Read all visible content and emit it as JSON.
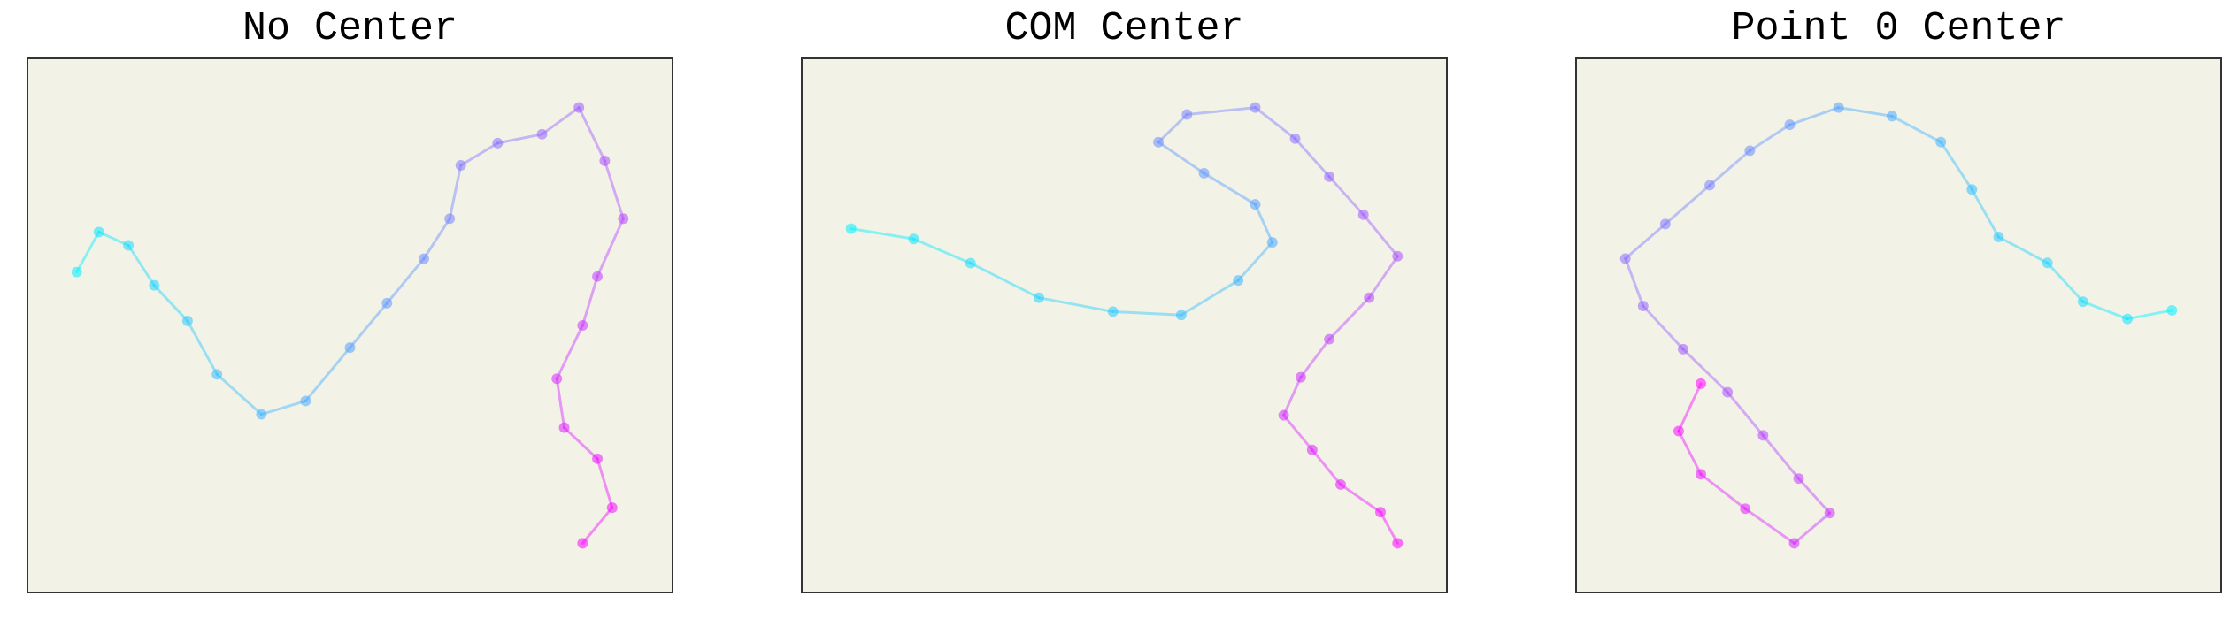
{
  "chart_data": [
    {
      "type": "line",
      "title": "No Center",
      "xlabel": "",
      "ylabel": "",
      "grid": false,
      "series": [
        {
          "color_start": "#00f0ff",
          "color_end": "#ff00ff",
          "points": [
            [
              -8.2,
              0.5
            ],
            [
              -7.6,
              1.4
            ],
            [
              -6.8,
              1.1
            ],
            [
              -6.1,
              0.2
            ],
            [
              -5.2,
              -0.6
            ],
            [
              -4.4,
              -1.8
            ],
            [
              -3.2,
              -2.7
            ],
            [
              -2.0,
              -2.4
            ],
            [
              -0.8,
              -1.2
            ],
            [
              0.2,
              -0.2
            ],
            [
              1.2,
              0.8
            ],
            [
              1.9,
              1.7
            ],
            [
              2.2,
              2.9
            ],
            [
              3.2,
              3.4
            ],
            [
              4.4,
              3.6
            ],
            [
              5.4,
              4.2
            ],
            [
              6.1,
              3.0
            ],
            [
              6.6,
              1.7
            ],
            [
              5.9,
              0.4
            ],
            [
              5.5,
              -0.7
            ],
            [
              4.8,
              -1.9
            ],
            [
              5.0,
              -3.0
            ],
            [
              5.9,
              -3.7
            ],
            [
              6.3,
              -4.8
            ],
            [
              5.5,
              -5.6
            ]
          ]
        }
      ]
    },
    {
      "type": "line",
      "title": "COM Center",
      "xlabel": "",
      "ylabel": "",
      "grid": false,
      "series": [
        {
          "color_start": "#00f0ff",
          "color_end": "#ff00ff",
          "points": [
            [
              -6.0,
              2.8
            ],
            [
              -4.9,
              2.5
            ],
            [
              -3.9,
              1.8
            ],
            [
              -2.7,
              0.8
            ],
            [
              -1.4,
              0.4
            ],
            [
              -0.2,
              0.3
            ],
            [
              0.8,
              1.3
            ],
            [
              1.4,
              2.4
            ],
            [
              1.1,
              3.5
            ],
            [
              0.2,
              4.4
            ],
            [
              -0.6,
              5.3
            ],
            [
              -0.1,
              6.1
            ],
            [
              1.1,
              6.3
            ],
            [
              1.8,
              5.4
            ],
            [
              2.4,
              4.3
            ],
            [
              3.0,
              3.2
            ],
            [
              3.6,
              2.0
            ],
            [
              3.1,
              0.8
            ],
            [
              2.4,
              -0.4
            ],
            [
              1.9,
              -1.5
            ],
            [
              1.6,
              -2.6
            ],
            [
              2.1,
              -3.6
            ],
            [
              2.6,
              -4.6
            ],
            [
              3.3,
              -5.4
            ],
            [
              3.6,
              -6.3
            ]
          ]
        }
      ]
    },
    {
      "type": "line",
      "title": "Point 0 Center",
      "xlabel": "",
      "ylabel": "",
      "grid": false,
      "series": [
        {
          "color_start": "#00f0ff",
          "color_end": "#ff00ff",
          "points": [
            [
              9.0,
              -0.5
            ],
            [
              8.0,
              -0.7
            ],
            [
              7.0,
              -0.3
            ],
            [
              6.2,
              0.6
            ],
            [
              5.1,
              1.2
            ],
            [
              4.5,
              2.3
            ],
            [
              3.8,
              3.4
            ],
            [
              2.7,
              4.0
            ],
            [
              1.5,
              4.2
            ],
            [
              0.4,
              3.8
            ],
            [
              -0.5,
              3.2
            ],
            [
              -1.4,
              2.4
            ],
            [
              -2.4,
              1.5
            ],
            [
              -3.3,
              0.7
            ],
            [
              -2.9,
              -0.4
            ],
            [
              -2.0,
              -1.4
            ],
            [
              -1.0,
              -2.4
            ],
            [
              -0.2,
              -3.4
            ],
            [
              0.6,
              -4.4
            ],
            [
              1.3,
              -5.2
            ],
            [
              0.5,
              -5.9
            ],
            [
              -0.6,
              -5.1
            ],
            [
              -1.6,
              -4.3
            ],
            [
              -2.1,
              -3.3
            ],
            [
              -1.6,
              -2.2
            ]
          ]
        }
      ]
    }
  ]
}
